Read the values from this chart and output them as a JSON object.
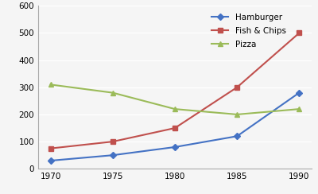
{
  "x": [
    1970,
    1975,
    1980,
    1985,
    1990
  ],
  "hamburger": [
    30,
    50,
    80,
    120,
    280
  ],
  "fish_chips": [
    75,
    100,
    150,
    300,
    500
  ],
  "pizza": [
    310,
    280,
    220,
    200,
    220
  ],
  "hamburger_color": "#4472C4",
  "fish_chips_color": "#C0504D",
  "pizza_color": "#9BBB59",
  "hamburger_label": "Hamburger",
  "fish_chips_label": "Fish & Chips",
  "pizza_label": "Pizza",
  "ylim": [
    0,
    600
  ],
  "yticks": [
    0,
    100,
    200,
    300,
    400,
    500,
    600
  ],
  "xticks": [
    1970,
    1975,
    1980,
    1985,
    1990
  ],
  "background_color": "#f5f5f5",
  "grid_color": "#ffffff"
}
